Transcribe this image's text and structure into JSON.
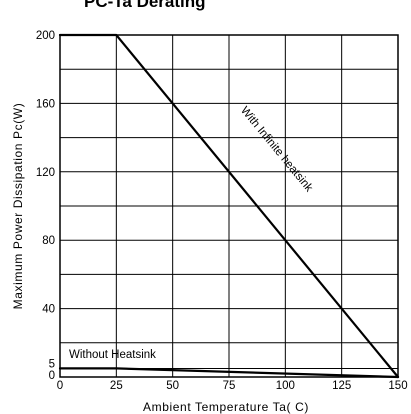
{
  "chart_data": {
    "type": "line",
    "title": "PC-Ta Derating",
    "xlabel": "Ambient Temperature Ta( C)",
    "ylabel": "Maximum Power Dissipation Pc(W)",
    "xlim": [
      0,
      150
    ],
    "ylim": [
      0,
      200
    ],
    "x_ticks": [
      "0",
      "25",
      "50",
      "75",
      "100",
      "125",
      "150"
    ],
    "y_ticks": [
      "0",
      "5",
      "40",
      "80",
      "120",
      "160",
      "200"
    ],
    "grid": true,
    "series": [
      {
        "name": "With Infinite heatsink",
        "x": [
          0,
          25,
          150
        ],
        "y": [
          200,
          200,
          0
        ]
      },
      {
        "name": "Without Heatsink",
        "x": [
          0,
          25,
          150
        ],
        "y": [
          5,
          5,
          0
        ]
      }
    ]
  }
}
